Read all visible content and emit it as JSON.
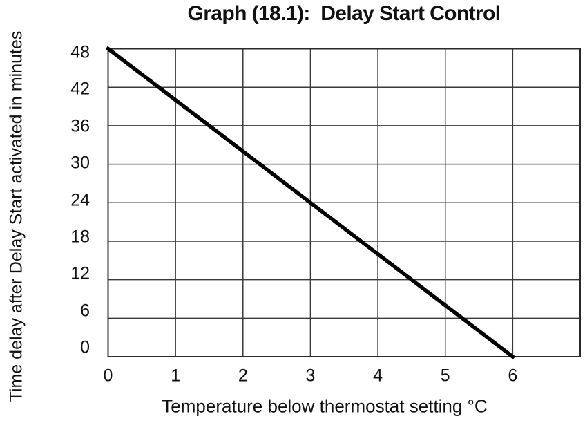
{
  "chart_data": {
    "type": "line",
    "title": "Graph (18.1):  Delay Start Control",
    "xlabel": "Temperature below thermostat setting °C",
    "ylabel": "Time delay after Delay Start activated in minutes",
    "x_ticks": [
      "0",
      "1",
      "2",
      "3",
      "4",
      "5",
      "6"
    ],
    "y_ticks": [
      "48",
      "42",
      "36",
      "30",
      "24",
      "18",
      "12",
      "6",
      "0"
    ],
    "xlim": [
      0,
      7
    ],
    "ylim": [
      0,
      48
    ],
    "x_gridline_step": 1,
    "y_gridline_step": 6,
    "grid": true,
    "legend": false,
    "series": [
      {
        "name": "delay_time_line",
        "x": [
          0,
          6
        ],
        "y": [
          48,
          0
        ],
        "color": "#000000",
        "stroke_width": 5.5
      }
    ],
    "grid_color": "#3a3a3a",
    "border_color": "#2a2a2a",
    "text_color": "#111111",
    "background_color": "#ffffff"
  }
}
